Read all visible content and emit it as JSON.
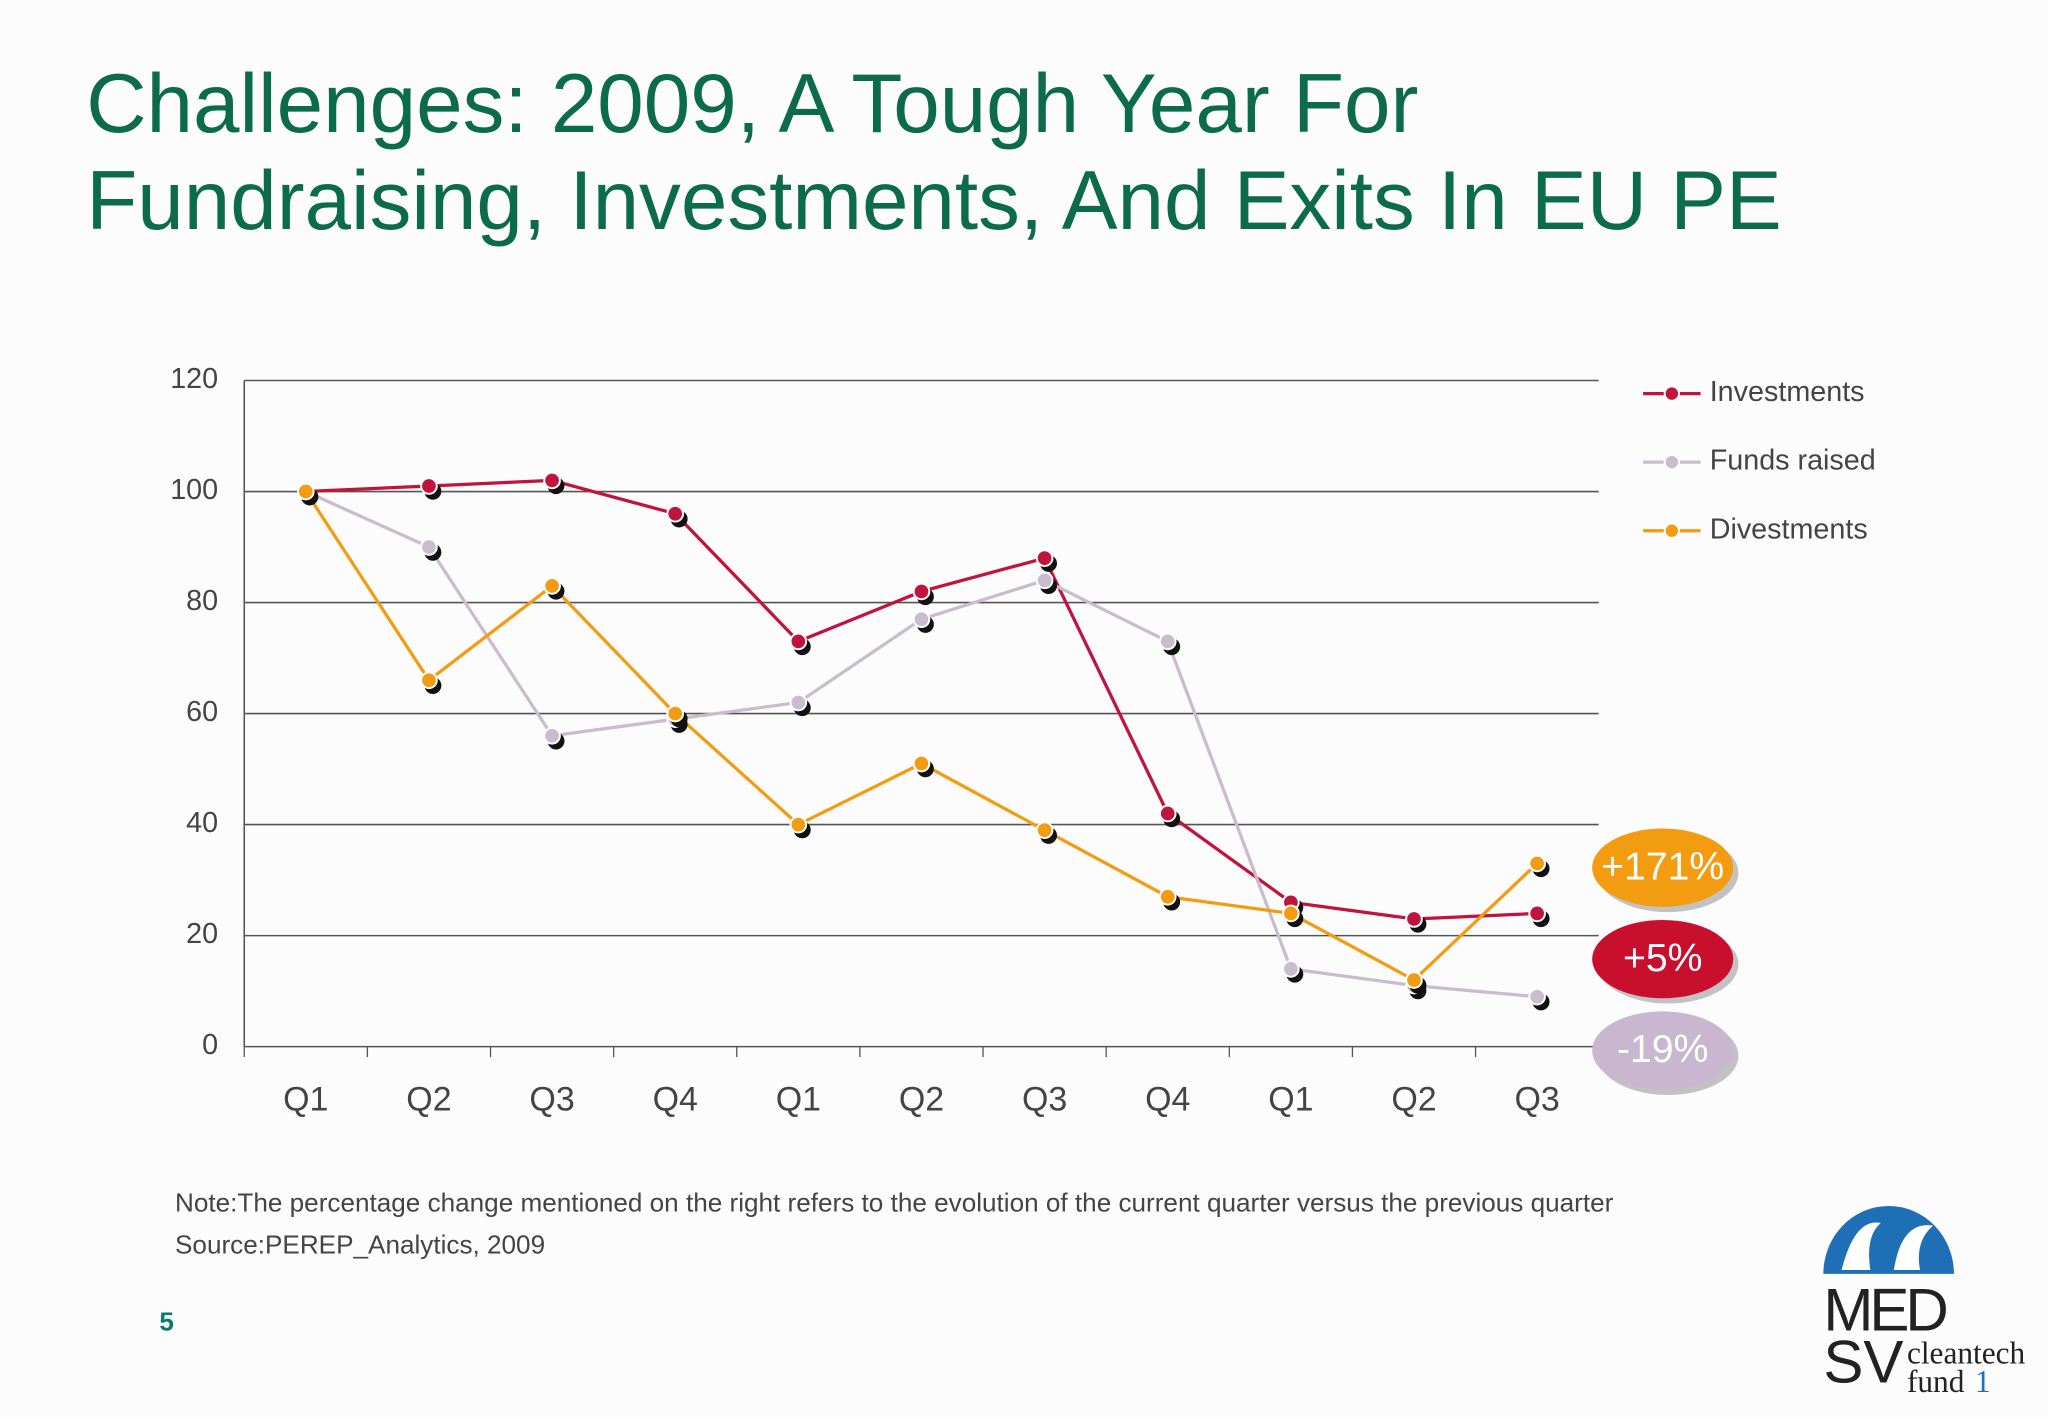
{
  "chart_data": {
    "type": "line",
    "title": [
      "Challenges: 2009, A Tough Year For",
      "Fundraising, Investments, And Exits In EU PE"
    ],
    "categories": [
      "Q1",
      "Q2",
      "Q3",
      "Q4",
      "Q1",
      "Q2",
      "Q3",
      "Q4",
      "Q1",
      "Q2",
      "Q3"
    ],
    "series": [
      {
        "name": "Investments",
        "color": "#c0143c",
        "values": [
          100,
          101,
          102,
          96,
          73,
          82,
          88,
          42,
          26,
          23,
          24
        ]
      },
      {
        "name": "Funds raised",
        "color": "#c9bccd",
        "values": [
          100,
          90,
          56,
          59,
          62,
          77,
          84,
          73,
          14,
          11,
          9
        ]
      },
      {
        "name": "Divestments",
        "color": "#f39c12",
        "values": [
          100,
          66,
          83,
          60,
          40,
          51,
          39,
          27,
          24,
          12,
          33
        ]
      }
    ],
    "ylim": [
      0,
      120
    ],
    "yticks": [
      0,
      20,
      40,
      60,
      80,
      100,
      120
    ],
    "grid": true,
    "legend": "right",
    "annotations": [
      {
        "text": "+171%",
        "color": "#f39c12"
      },
      {
        "text": "+5%",
        "color": "#c8102e"
      },
      {
        "text": "-19%",
        "color": "#c9b6cf"
      }
    ],
    "notes": [
      "Note:The percentage change mentioned on the right refers to the evolution of the current quarter versus the previous quarter",
      "Source:PEREP_Analytics, 2009"
    ],
    "page_number": "5",
    "logo": {
      "top": "MED",
      "bottom": "SV",
      "line1": "cleantech",
      "line2": "fund",
      "number": "1"
    }
  }
}
